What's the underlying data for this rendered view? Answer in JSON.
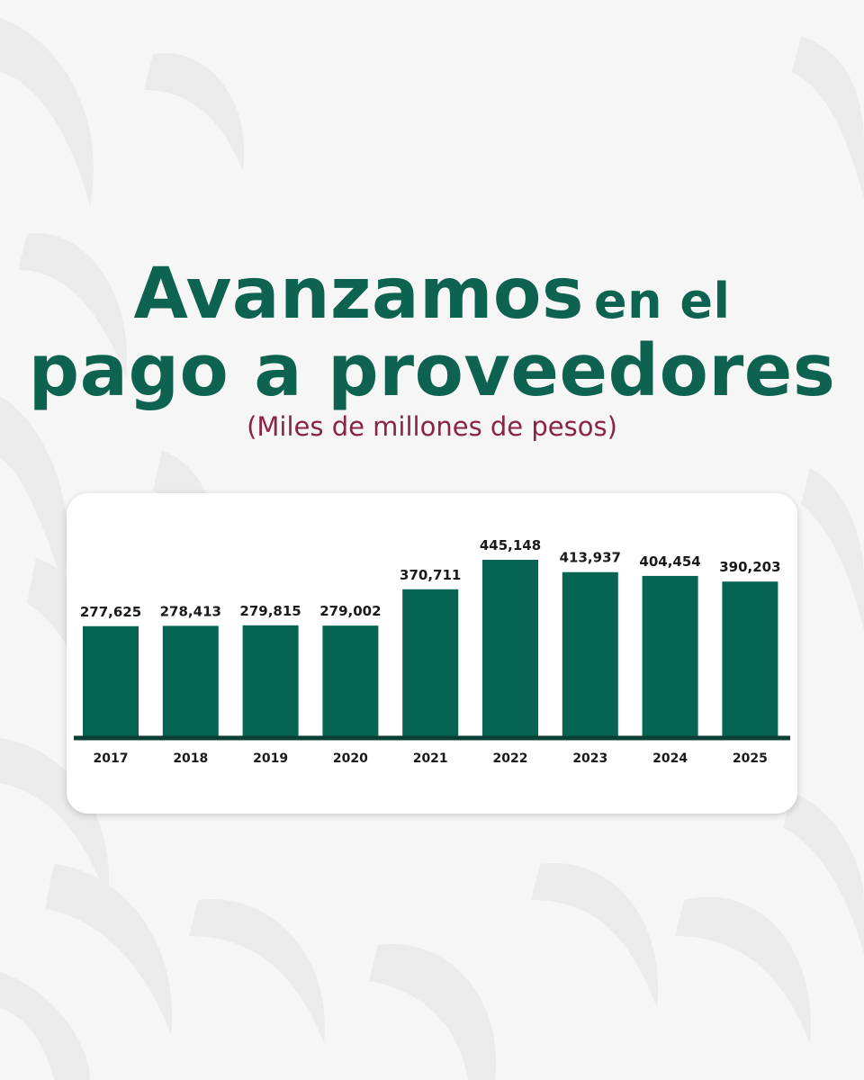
{
  "header": {
    "title_part1": "Avanzamos",
    "title_part2": "en el",
    "title_line2": "pago a proveedores",
    "subtitle": "(Miles de millones de pesos)"
  },
  "chart_data": {
    "type": "bar",
    "categories": [
      "2017",
      "2018",
      "2019",
      "2020",
      "2021",
      "2022",
      "2023",
      "2024",
      "2025"
    ],
    "values": [
      277625,
      278413,
      279815,
      279002,
      370711,
      445148,
      413937,
      404454,
      390203
    ],
    "value_labels": [
      "277,625",
      "278,413",
      "279,815",
      "279,002",
      "370,711",
      "445,148",
      "413,937",
      "404,454",
      "390,203"
    ],
    "ylim": [
      0,
      445148
    ],
    "grid": false,
    "bar_color": "#066452"
  },
  "colors": {
    "title": "#0d6350",
    "subtitle": "#8b2347",
    "baseline": "#0b3f35"
  }
}
